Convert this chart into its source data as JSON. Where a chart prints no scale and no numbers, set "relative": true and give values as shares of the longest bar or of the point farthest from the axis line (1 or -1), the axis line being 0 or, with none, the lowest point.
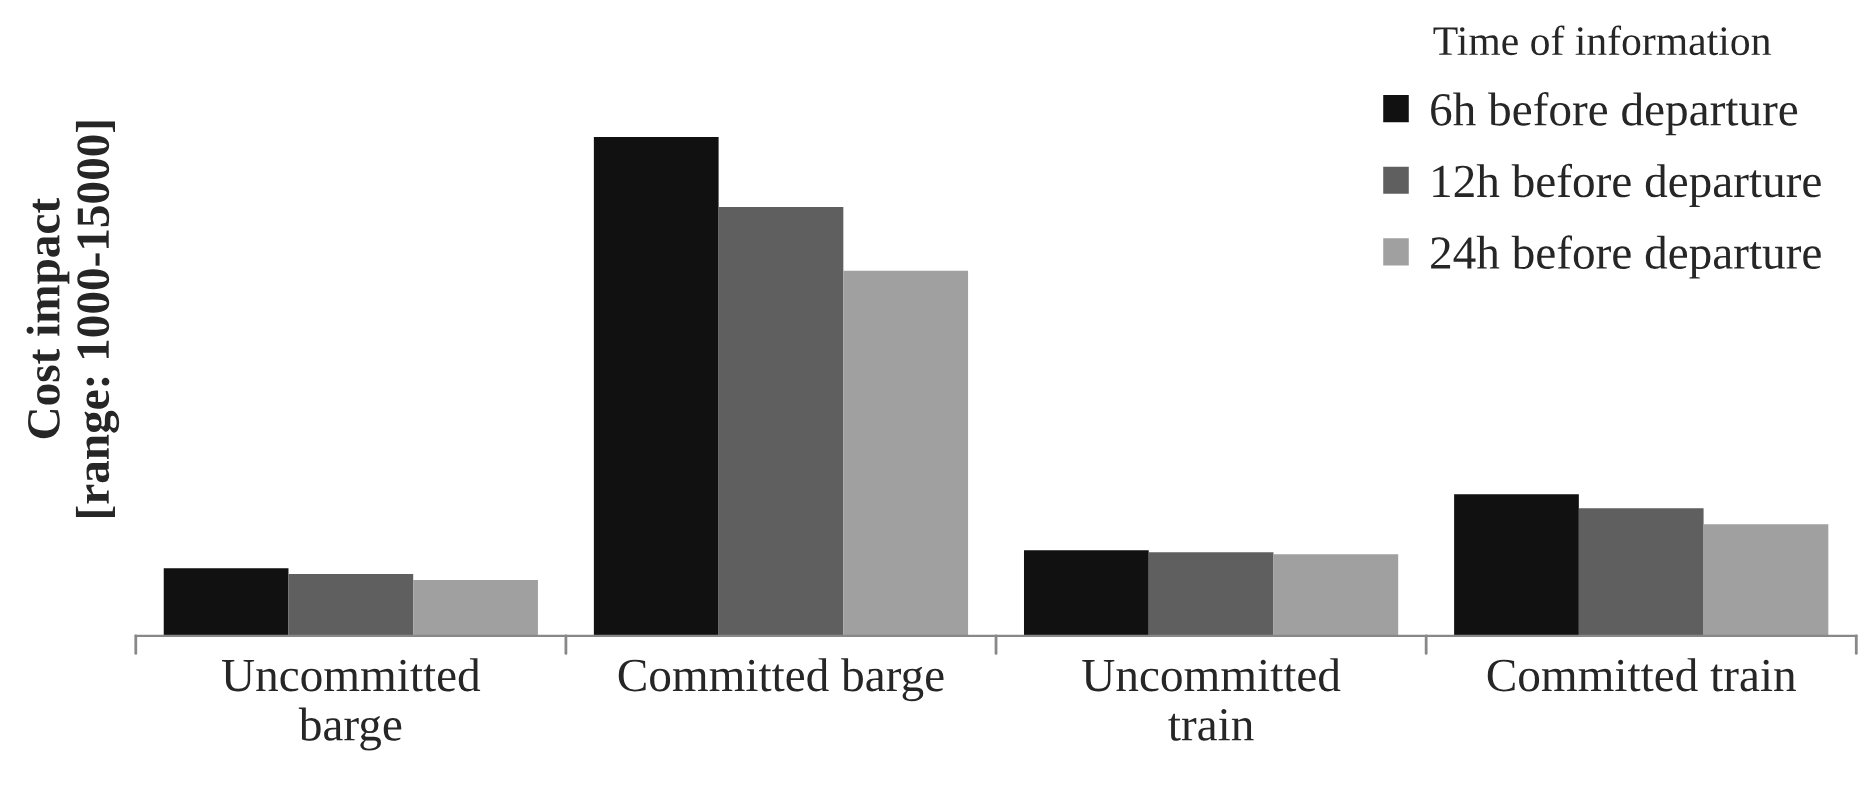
{
  "chart_data": {
    "type": "bar",
    "relative": true,
    "ylabel": "Cost impact\n[range: 1000-15000]",
    "legend_title": "Time of information",
    "legend": "top right",
    "categories": [
      "Uncommitted barge",
      "Committed barge",
      "Uncommitted train",
      "Committed train"
    ],
    "series": [
      {
        "name": "6h before departure",
        "color": "#111111",
        "values": [
          0.136,
          1,
          0.172,
          0.284
        ]
      },
      {
        "name": "12h before departure",
        "color": "#5f5f5f",
        "values": [
          0.124,
          0.86,
          0.168,
          0.256
        ]
      },
      {
        "name": "24h before departure",
        "color": "#a0a0a0",
        "values": [
          0.112,
          0.732,
          0.164,
          0.224
        ]
      }
    ]
  }
}
